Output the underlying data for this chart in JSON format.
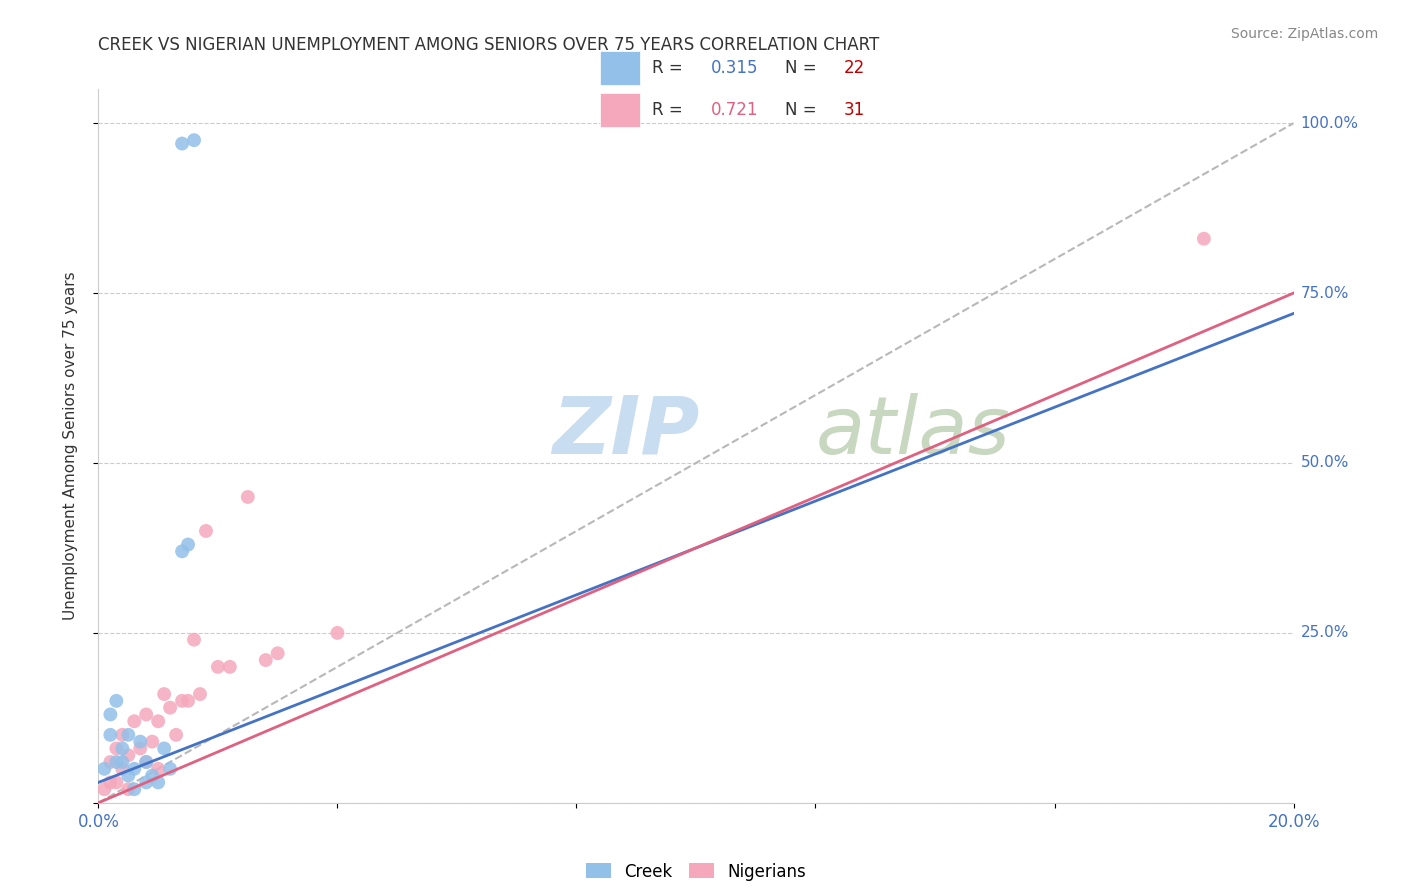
{
  "title": "CREEK VS NIGERIAN UNEMPLOYMENT AMONG SENIORS OVER 75 YEARS CORRELATION CHART",
  "source": "Source: ZipAtlas.com",
  "ylabel": "Unemployment Among Seniors over 75 years",
  "xlim": [
    0.0,
    0.2
  ],
  "ylim": [
    0.0,
    1.05
  ],
  "creek_color": "#92c0e8",
  "nigerian_color": "#f5a8bc",
  "creek_line_color": "#4472c4",
  "nigerian_line_color": "#e06080",
  "diagonal_color": "#b8b8b8",
  "watermark_zip": "ZIP",
  "watermark_atlas": "atlas",
  "watermark_color_zip": "#c8ddf0",
  "watermark_color_atlas": "#c8d8c0",
  "creek_R": "0.315",
  "creek_N": "22",
  "nigerian_R": "0.721",
  "nigerian_N": "31",
  "legend_R_color": "#4472c4",
  "legend_N_color": "#c00000",
  "legend_nigerian_R_color": "#e06080",
  "creek_points_x": [
    0.001,
    0.002,
    0.002,
    0.003,
    0.003,
    0.004,
    0.004,
    0.005,
    0.005,
    0.006,
    0.006,
    0.007,
    0.008,
    0.008,
    0.009,
    0.01,
    0.011,
    0.012,
    0.014,
    0.016,
    0.014,
    0.015
  ],
  "creek_points_y": [
    0.05,
    0.1,
    0.13,
    0.06,
    0.15,
    0.06,
    0.08,
    0.1,
    0.04,
    0.02,
    0.05,
    0.09,
    0.03,
    0.06,
    0.04,
    0.03,
    0.08,
    0.05,
    0.97,
    0.975,
    0.37,
    0.38
  ],
  "nigerian_points_x": [
    0.001,
    0.002,
    0.002,
    0.003,
    0.003,
    0.004,
    0.004,
    0.005,
    0.005,
    0.006,
    0.007,
    0.008,
    0.008,
    0.009,
    0.01,
    0.01,
    0.011,
    0.012,
    0.013,
    0.014,
    0.015,
    0.016,
    0.017,
    0.018,
    0.02,
    0.022,
    0.025,
    0.028,
    0.03,
    0.04,
    0.185
  ],
  "nigerian_points_y": [
    0.02,
    0.03,
    0.06,
    0.03,
    0.08,
    0.05,
    0.1,
    0.02,
    0.07,
    0.12,
    0.08,
    0.06,
    0.13,
    0.09,
    0.12,
    0.05,
    0.16,
    0.14,
    0.1,
    0.15,
    0.15,
    0.24,
    0.16,
    0.4,
    0.2,
    0.2,
    0.45,
    0.21,
    0.22,
    0.25,
    0.83
  ],
  "creek_line_x": [
    0.0,
    0.2
  ],
  "creek_line_y": [
    0.03,
    0.72
  ],
  "nigerian_line_x": [
    0.0,
    0.2
  ],
  "nigerian_line_y": [
    0.0,
    0.75
  ]
}
